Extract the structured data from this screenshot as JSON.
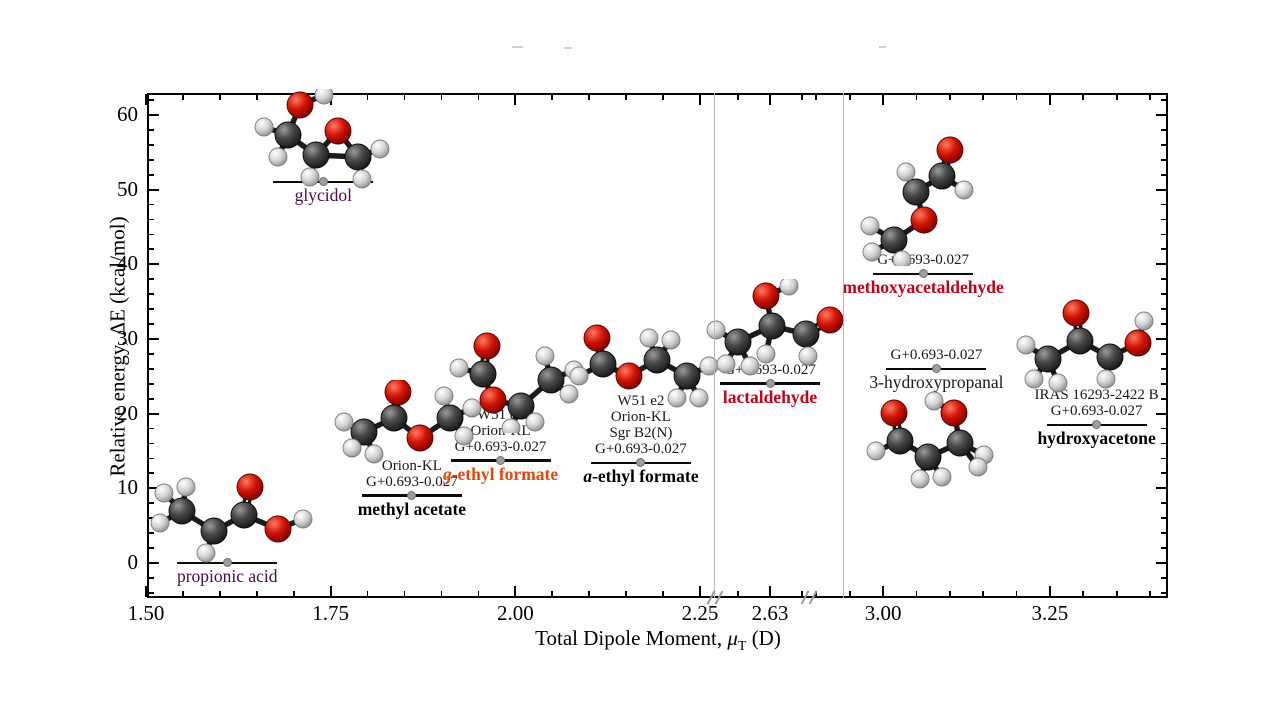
{
  "figure": {
    "ylabel": "Relative energy, ΔE (kcal/mol)",
    "xlabel": {
      "prefix": "Total Dipole Moment, ",
      "mu": "μ",
      "sub": "T",
      "suffix": " (D)"
    }
  },
  "chart_data": {
    "type": "scatter",
    "title": "",
    "xlabel": "Total Dipole Moment, μT (D)",
    "ylabel": "Relative energy, ΔE (kcal/mol)",
    "xlim": [
      1.5,
      3.43
    ],
    "ylim": [
      -4,
      62
    ],
    "x_major_ticks": [
      1.5,
      1.75,
      2.0,
      2.25,
      2.63,
      3.0,
      3.25
    ],
    "x_tick_labels": [
      "1.50",
      "1.75",
      "2.00",
      "2.25",
      "2.63",
      "3.00",
      "3.25"
    ],
    "y_major_ticks": [
      0,
      10,
      20,
      30,
      40,
      50,
      60
    ],
    "x_axis_breaks": [
      "between 2.25 and 2.63",
      "between 2.63 and 3.00"
    ],
    "grid": false,
    "legend": "none",
    "points": [
      {
        "id": "propionic-acid",
        "name": "propionic acid",
        "x": 1.61,
        "y": 0,
        "sources": [],
        "name_color": "#4b0a50",
        "bold": false,
        "italic_first": false
      },
      {
        "id": "glycidol",
        "name": "glycidol",
        "x": 1.74,
        "y": 51,
        "sources": [],
        "name_color": "#4b0a50",
        "bold": false,
        "italic_first": false
      },
      {
        "id": "methyl-acetate",
        "name": "methyl acetate",
        "x": 1.86,
        "y": 9,
        "sources": [
          "Orion-KL",
          "G+0.693-0.027"
        ],
        "name_color": "#000000",
        "bold": true,
        "italic_first": false
      },
      {
        "id": "g-ethyl-formate",
        "name": "g-ethyl formate",
        "x": 1.98,
        "y": 13.7,
        "sources": [
          "W51 e2",
          "Orion-KL",
          "G+0.693-0.027"
        ],
        "name_color": "#e8470b",
        "bold": true,
        "italic_first": true
      },
      {
        "id": "a-ethyl-formate",
        "name": "a-ethyl formate",
        "x": 2.17,
        "y": 13.4,
        "sources": [
          "W51 e2",
          "Orion-KL",
          "Sgr B2(N)",
          "G+0.693-0.027"
        ],
        "name_color": "#000000",
        "bold": true,
        "italic_first": true
      },
      {
        "id": "lactaldehyde",
        "name": "lactaldehyde",
        "x": 2.63,
        "y": 24,
        "sources": [
          "G+0.693-0.027"
        ],
        "name_color": "#c60018",
        "bold": true,
        "italic_first": false
      },
      {
        "id": "methoxyacetaldehyde",
        "name": "methoxyacetaldehyde",
        "x": 3.06,
        "y": 38.7,
        "sources": [
          "G+0.693-0.027"
        ],
        "name_color": "#c60018",
        "bold": true,
        "italic_first": false
      },
      {
        "id": "3-hydroxypropanal",
        "name": "3-hydroxypropanal",
        "x": 3.08,
        "y": 26,
        "sources": [
          "G+0.693-0.027"
        ],
        "name_color": "#1a1a1a",
        "bold": false,
        "italic_first": false
      },
      {
        "id": "hydroxyacetone",
        "name": "hydroxyacetone",
        "x": 3.32,
        "y": 18.5,
        "sources": [
          "IRAS 16293-2422 B",
          "G+0.693-0.027"
        ],
        "name_color": "#000000",
        "bold": true,
        "italic_first": false
      }
    ],
    "colors": {
      "oxygen_atom": "#cc1404",
      "carbon_atom": "#3a3a3a",
      "hydrogen_atom": "#d6d6d6",
      "marker_dot": "#9d9d9d",
      "level_line": "#0d0d0d",
      "break_guide_line": "#b7b7b7",
      "purple_label": "#4b0a50",
      "orange_label": "#e8470b",
      "red_label": "#c60018"
    }
  }
}
